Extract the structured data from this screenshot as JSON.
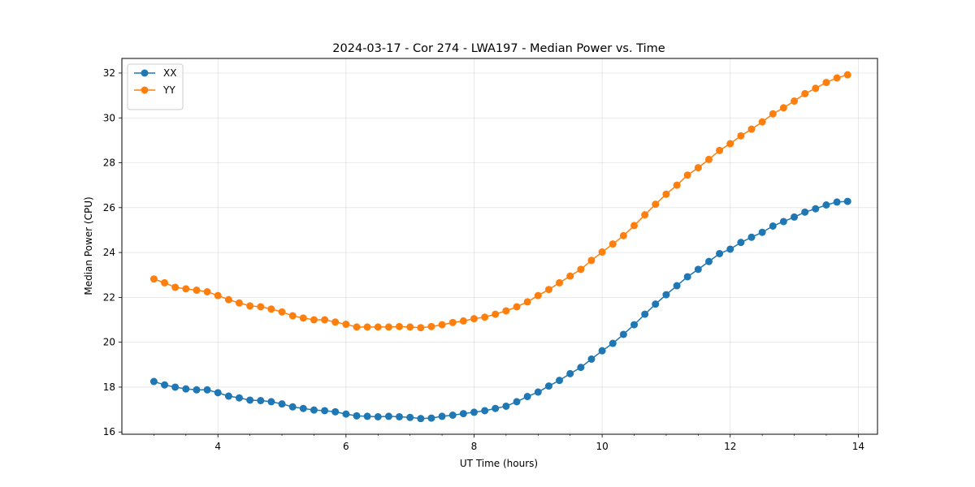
{
  "chart_data": {
    "type": "line",
    "title": "2024-03-17 - Cor 274 - LWA197 - Median Power vs. Time",
    "xlabel": "UT Time (hours)",
    "ylabel": "Median Power (CPU)",
    "xlim": [
      2.5,
      14.3
    ],
    "ylim": [
      15.9,
      32.65
    ],
    "xticks": [
      4,
      6,
      8,
      10,
      12,
      14
    ],
    "xtick_labels": [
      "4",
      "6",
      "8",
      "10",
      "12",
      "14"
    ],
    "yticks": [
      16,
      18,
      20,
      22,
      24,
      26,
      28,
      30,
      32
    ],
    "ytick_labels": [
      "16",
      "18",
      "20",
      "22",
      "24",
      "26",
      "28",
      "30",
      "32"
    ],
    "grid": true,
    "legend_position": "top-left",
    "x": [
      3.0,
      3.167,
      3.333,
      3.5,
      3.667,
      3.833,
      4.0,
      4.167,
      4.333,
      4.5,
      4.667,
      4.833,
      5.0,
      5.167,
      5.333,
      5.5,
      5.667,
      5.833,
      6.0,
      6.167,
      6.333,
      6.5,
      6.667,
      6.833,
      7.0,
      7.167,
      7.333,
      7.5,
      7.667,
      7.833,
      8.0,
      8.167,
      8.333,
      8.5,
      8.667,
      8.833,
      9.0,
      9.167,
      9.333,
      9.5,
      9.667,
      9.833,
      10.0,
      10.167,
      10.333,
      10.5,
      10.667,
      10.833,
      11.0,
      11.167,
      11.333,
      11.5,
      11.667,
      11.833,
      12.0,
      12.167,
      12.333,
      12.5,
      12.667,
      12.833,
      13.0,
      13.167,
      13.333,
      13.5,
      13.667,
      13.833
    ],
    "series": [
      {
        "name": "XX",
        "color": "#1f77b4",
        "values": [
          18.25,
          18.1,
          18.0,
          17.92,
          17.88,
          17.88,
          17.75,
          17.6,
          17.52,
          17.42,
          17.4,
          17.35,
          17.25,
          17.12,
          17.05,
          16.98,
          16.95,
          16.9,
          16.8,
          16.72,
          16.7,
          16.68,
          16.7,
          16.68,
          16.65,
          16.6,
          16.62,
          16.7,
          16.75,
          16.82,
          16.88,
          16.95,
          17.05,
          17.15,
          17.35,
          17.58,
          17.78,
          18.05,
          18.3,
          18.6,
          18.88,
          19.25,
          19.62,
          19.95,
          20.35,
          20.78,
          21.25,
          21.7,
          22.12,
          22.52,
          22.92,
          23.25,
          23.6,
          23.95,
          24.15,
          24.45,
          24.68,
          24.9,
          25.18,
          25.38,
          25.58,
          25.8,
          25.95,
          26.12,
          26.25,
          26.28
        ]
      },
      {
        "name": "YY",
        "color": "#ff7f0e",
        "values": [
          22.82,
          22.65,
          22.45,
          22.38,
          22.32,
          22.25,
          22.08,
          21.9,
          21.75,
          21.62,
          21.58,
          21.48,
          21.35,
          21.18,
          21.08,
          21.0,
          21.0,
          20.9,
          20.8,
          20.68,
          20.68,
          20.68,
          20.68,
          20.7,
          20.68,
          20.65,
          20.7,
          20.78,
          20.88,
          20.95,
          21.05,
          21.12,
          21.25,
          21.4,
          21.58,
          21.8,
          22.08,
          22.35,
          22.65,
          22.95,
          23.25,
          23.65,
          24.02,
          24.38,
          24.75,
          25.2,
          25.68,
          26.15,
          26.6,
          27.0,
          27.45,
          27.78,
          28.15,
          28.55,
          28.85,
          29.2,
          29.5,
          29.82,
          30.18,
          30.45,
          30.75,
          31.08,
          31.32,
          31.58,
          31.78,
          31.92
        ]
      }
    ]
  }
}
